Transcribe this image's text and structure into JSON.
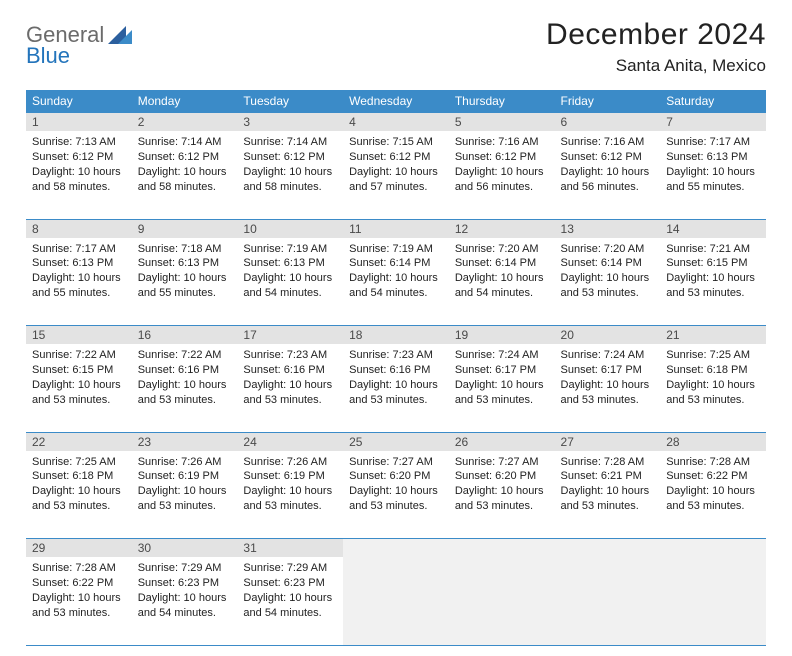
{
  "logo": {
    "general": "General",
    "blue": "Blue"
  },
  "title": "December 2024",
  "location": "Santa Anita, Mexico",
  "colors": {
    "header_bg": "#3b8bc8",
    "header_fg": "#ffffff",
    "daynum_bg": "#e3e3e3",
    "border": "#3b8bc8",
    "logo_gray": "#6b6b6b",
    "logo_blue": "#2374bb",
    "text": "#222222",
    "empty_bg": "#f1f1f1"
  },
  "day_headers": [
    "Sunday",
    "Monday",
    "Tuesday",
    "Wednesday",
    "Thursday",
    "Friday",
    "Saturday"
  ],
  "weeks": [
    [
      {
        "n": "1",
        "sr": "7:13 AM",
        "ss": "6:12 PM",
        "dl": "10 hours and 58 minutes."
      },
      {
        "n": "2",
        "sr": "7:14 AM",
        "ss": "6:12 PM",
        "dl": "10 hours and 58 minutes."
      },
      {
        "n": "3",
        "sr": "7:14 AM",
        "ss": "6:12 PM",
        "dl": "10 hours and 58 minutes."
      },
      {
        "n": "4",
        "sr": "7:15 AM",
        "ss": "6:12 PM",
        "dl": "10 hours and 57 minutes."
      },
      {
        "n": "5",
        "sr": "7:16 AM",
        "ss": "6:12 PM",
        "dl": "10 hours and 56 minutes."
      },
      {
        "n": "6",
        "sr": "7:16 AM",
        "ss": "6:12 PM",
        "dl": "10 hours and 56 minutes."
      },
      {
        "n": "7",
        "sr": "7:17 AM",
        "ss": "6:13 PM",
        "dl": "10 hours and 55 minutes."
      }
    ],
    [
      {
        "n": "8",
        "sr": "7:17 AM",
        "ss": "6:13 PM",
        "dl": "10 hours and 55 minutes."
      },
      {
        "n": "9",
        "sr": "7:18 AM",
        "ss": "6:13 PM",
        "dl": "10 hours and 55 minutes."
      },
      {
        "n": "10",
        "sr": "7:19 AM",
        "ss": "6:13 PM",
        "dl": "10 hours and 54 minutes."
      },
      {
        "n": "11",
        "sr": "7:19 AM",
        "ss": "6:14 PM",
        "dl": "10 hours and 54 minutes."
      },
      {
        "n": "12",
        "sr": "7:20 AM",
        "ss": "6:14 PM",
        "dl": "10 hours and 54 minutes."
      },
      {
        "n": "13",
        "sr": "7:20 AM",
        "ss": "6:14 PM",
        "dl": "10 hours and 53 minutes."
      },
      {
        "n": "14",
        "sr": "7:21 AM",
        "ss": "6:15 PM",
        "dl": "10 hours and 53 minutes."
      }
    ],
    [
      {
        "n": "15",
        "sr": "7:22 AM",
        "ss": "6:15 PM",
        "dl": "10 hours and 53 minutes."
      },
      {
        "n": "16",
        "sr": "7:22 AM",
        "ss": "6:16 PM",
        "dl": "10 hours and 53 minutes."
      },
      {
        "n": "17",
        "sr": "7:23 AM",
        "ss": "6:16 PM",
        "dl": "10 hours and 53 minutes."
      },
      {
        "n": "18",
        "sr": "7:23 AM",
        "ss": "6:16 PM",
        "dl": "10 hours and 53 minutes."
      },
      {
        "n": "19",
        "sr": "7:24 AM",
        "ss": "6:17 PM",
        "dl": "10 hours and 53 minutes."
      },
      {
        "n": "20",
        "sr": "7:24 AM",
        "ss": "6:17 PM",
        "dl": "10 hours and 53 minutes."
      },
      {
        "n": "21",
        "sr": "7:25 AM",
        "ss": "6:18 PM",
        "dl": "10 hours and 53 minutes."
      }
    ],
    [
      {
        "n": "22",
        "sr": "7:25 AM",
        "ss": "6:18 PM",
        "dl": "10 hours and 53 minutes."
      },
      {
        "n": "23",
        "sr": "7:26 AM",
        "ss": "6:19 PM",
        "dl": "10 hours and 53 minutes."
      },
      {
        "n": "24",
        "sr": "7:26 AM",
        "ss": "6:19 PM",
        "dl": "10 hours and 53 minutes."
      },
      {
        "n": "25",
        "sr": "7:27 AM",
        "ss": "6:20 PM",
        "dl": "10 hours and 53 minutes."
      },
      {
        "n": "26",
        "sr": "7:27 AM",
        "ss": "6:20 PM",
        "dl": "10 hours and 53 minutes."
      },
      {
        "n": "27",
        "sr": "7:28 AM",
        "ss": "6:21 PM",
        "dl": "10 hours and 53 minutes."
      },
      {
        "n": "28",
        "sr": "7:28 AM",
        "ss": "6:22 PM",
        "dl": "10 hours and 53 minutes."
      }
    ],
    [
      {
        "n": "29",
        "sr": "7:28 AM",
        "ss": "6:22 PM",
        "dl": "10 hours and 53 minutes."
      },
      {
        "n": "30",
        "sr": "7:29 AM",
        "ss": "6:23 PM",
        "dl": "10 hours and 54 minutes."
      },
      {
        "n": "31",
        "sr": "7:29 AM",
        "ss": "6:23 PM",
        "dl": "10 hours and 54 minutes."
      },
      null,
      null,
      null,
      null
    ]
  ],
  "labels": {
    "sunrise": "Sunrise:",
    "sunset": "Sunset:",
    "daylight": "Daylight:"
  }
}
